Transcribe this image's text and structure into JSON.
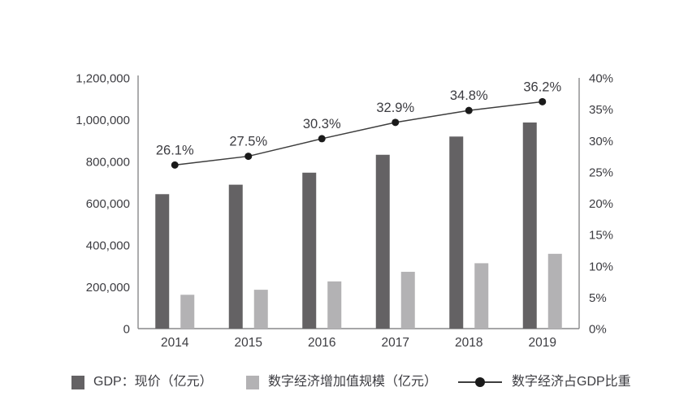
{
  "chart_data": {
    "type": "bar+line",
    "title": "",
    "categories": [
      "2014",
      "2015",
      "2016",
      "2017",
      "2018",
      "2019"
    ],
    "series": [
      {
        "name": "GDP：现价（亿元）",
        "type": "bar",
        "axis": "left",
        "color": "#646264",
        "values": [
          643563,
          688858,
          746395,
          832036,
          919281,
          986515
        ]
      },
      {
        "name": "数字经济增加值规模（亿元）",
        "type": "bar",
        "axis": "left",
        "color": "#b3b2b4",
        "values": [
          162000,
          186000,
          226000,
          272000,
          313000,
          358000
        ]
      },
      {
        "name": "数字经济占GDP比重",
        "type": "line",
        "axis": "right",
        "color": "#3d3d3d",
        "marker_color": "#1a1a1a",
        "values": [
          26.1,
          27.5,
          30.3,
          32.9,
          34.8,
          36.2
        ],
        "point_labels": [
          "26.1%",
          "27.5%",
          "30.3%",
          "32.9%",
          "34.8%",
          "36.2%"
        ]
      }
    ],
    "left_axis": {
      "min": 0,
      "max": 1200000,
      "tick_values": [
        0,
        200000,
        400000,
        600000,
        800000,
        1000000,
        1200000
      ],
      "tick_labels": [
        "0",
        "200,000",
        "400,000",
        "600,000",
        "800,000",
        "1,000,000",
        "1,200,000"
      ]
    },
    "right_axis": {
      "min": 0,
      "max": 40,
      "tick_values": [
        0,
        5,
        10,
        15,
        20,
        25,
        30,
        35,
        40
      ],
      "tick_labels": [
        "0%",
        "5%",
        "10%",
        "15%",
        "20%",
        "25%",
        "30%",
        "35%",
        "40%"
      ]
    },
    "grid": false,
    "legend_position": "bottom"
  },
  "legend": {
    "items": [
      {
        "label": "GDP：现价（亿元）",
        "marker": "square",
        "color": "#646264"
      },
      {
        "label": "数字经济增加值规模（亿元）",
        "marker": "square",
        "color": "#b3b2b4"
      },
      {
        "label": "数字经济占GDP比重",
        "marker": "line-dot",
        "color": "#3d3d3d"
      }
    ]
  },
  "colors": {
    "text": "#3c3c41",
    "axis_line": "#88888a",
    "background": "#ffffff"
  }
}
